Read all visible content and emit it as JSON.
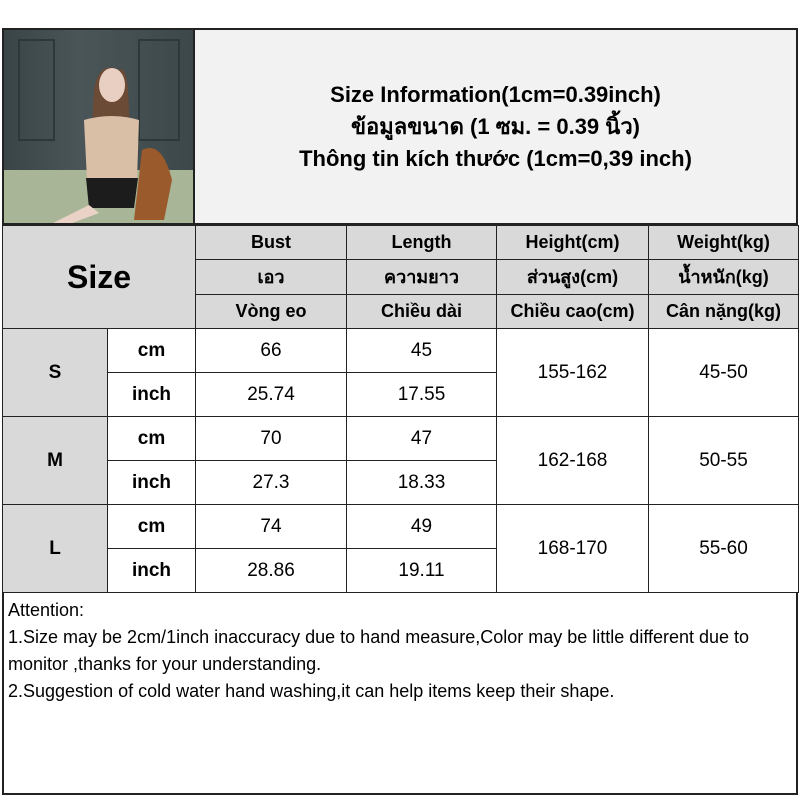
{
  "title": {
    "line1": "Size Information(1cm=0.39inch)",
    "line2": "ข้อมูลขนาด (1 ซม. = 0.39 นิ้ว)",
    "line3": "Thông tin kích thước (1cm=0,39 inch)"
  },
  "table": {
    "size_label": "Size",
    "headers": [
      {
        "en": "Bust",
        "th": "เอว",
        "vi": "Vòng eo"
      },
      {
        "en": "Length",
        "th": "ความยาว",
        "vi": "Chiều dài"
      },
      {
        "en": "Height(cm)",
        "th": "ส่วนสูง(cm)",
        "vi": "Chiều cao(cm)"
      },
      {
        "en": "Weight(kg)",
        "th": "น้ำหนัก(kg)",
        "vi": "Cân nặng(kg)"
      }
    ],
    "unit_cm": "cm",
    "unit_inch": "inch",
    "rows": [
      {
        "size": "S",
        "bust_cm": "66",
        "length_cm": "45",
        "bust_inch": "25.74",
        "length_inch": "17.55",
        "height": "155-162",
        "weight": "45-50"
      },
      {
        "size": "M",
        "bust_cm": "70",
        "length_cm": "47",
        "bust_inch": "27.3",
        "length_inch": "18.33",
        "height": "162-168",
        "weight": "50-55"
      },
      {
        "size": "L",
        "bust_cm": "74",
        "length_cm": "49",
        "bust_inch": "28.86",
        "length_inch": "19.11",
        "height": "168-170",
        "weight": "55-60"
      }
    ]
  },
  "attention": {
    "heading": "Attention:",
    "note1": "1.Size may be 2cm/1inch inaccuracy due to hand measure,Color may be little different due to monitor ,thanks for your understanding.",
    "note2": "2.Suggestion of cold water hand washing,it can help items keep their shape."
  }
}
